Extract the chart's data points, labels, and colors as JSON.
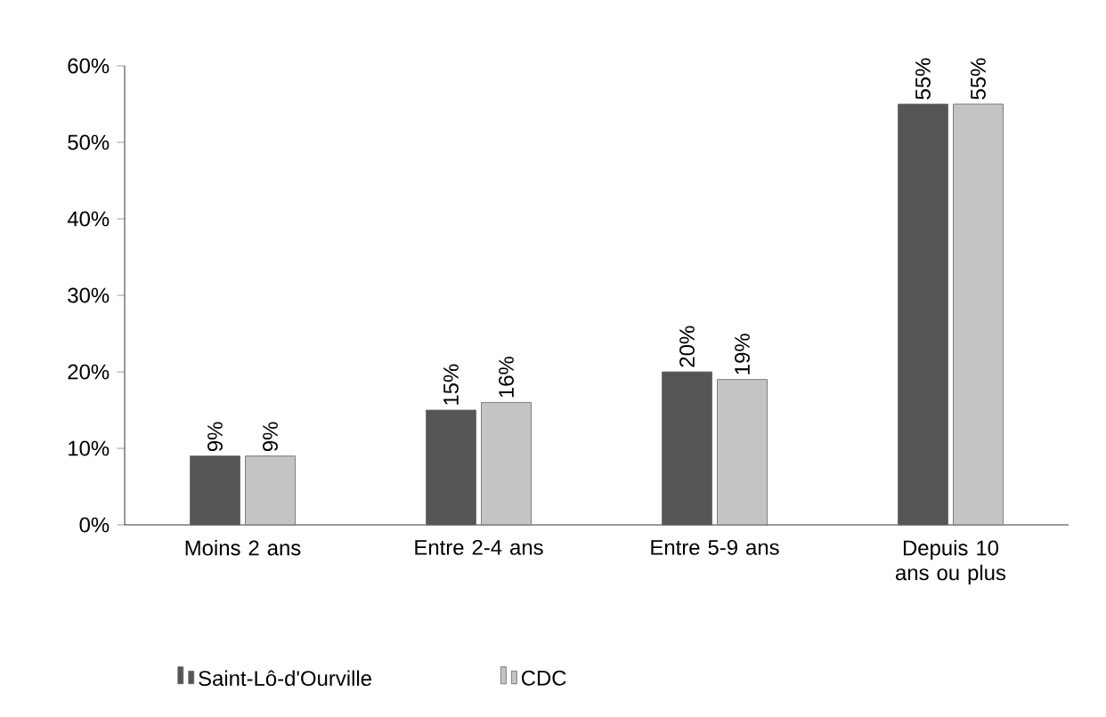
{
  "chart_data": {
    "type": "bar",
    "categories": [
      "Moins 2 ans",
      "Entre 2-4 ans",
      "Entre 5-9 ans",
      "Depuis 10 ans ou plus"
    ],
    "series": [
      {
        "name": "Saint-Lô-d'Ourville",
        "color": "#555555",
        "values": [
          9,
          15,
          20,
          55
        ],
        "value_labels": [
          "9%",
          "15%",
          "20%",
          "55%"
        ]
      },
      {
        "name": "CDC",
        "color": "#c4c4c4",
        "values": [
          9,
          16,
          19,
          55
        ],
        "value_labels": [
          "9%",
          "16%",
          "19%",
          "55%"
        ]
      }
    ],
    "ylim": [
      0,
      60
    ],
    "yticks": [
      {
        "value": 0,
        "label": "0%"
      },
      {
        "value": 10,
        "label": "10%"
      },
      {
        "value": 20,
        "label": "20%"
      },
      {
        "value": 30,
        "label": "30%"
      },
      {
        "value": 40,
        "label": "40%"
      },
      {
        "value": 50,
        "label": "50%"
      },
      {
        "value": 60,
        "label": "60%"
      }
    ],
    "legend": "bottom"
  }
}
